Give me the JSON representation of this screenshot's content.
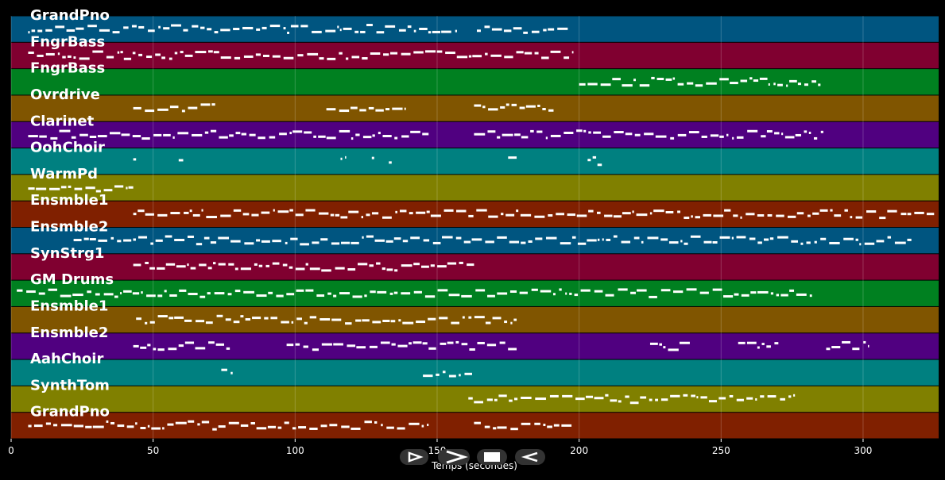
{
  "xlabel": "Temps (secondes)",
  "xlim": [
    0,
    326.6
  ],
  "xticks": [
    0,
    50,
    100,
    150,
    200,
    250,
    300
  ],
  "tracks": [
    {
      "name": "GrandPno",
      "color": "#005580",
      "spans": [
        [
          6,
          157
        ],
        [
          164,
          196
        ]
      ]
    },
    {
      "name": "FngrBass",
      "color": "#800030",
      "spans": [
        [
          6,
          198
        ]
      ]
    },
    {
      "name": "FngrBass",
      "color": "#008020",
      "spans": [
        [
          200,
          285
        ]
      ]
    },
    {
      "name": "Ovrdrive",
      "color": "#805500",
      "spans": [
        [
          43,
          72
        ],
        [
          111,
          139
        ],
        [
          163,
          191
        ]
      ]
    },
    {
      "name": "Clarinet",
      "color": "#500080",
      "spans": [
        [
          6,
          147
        ],
        [
          163,
          286
        ]
      ]
    },
    {
      "name": "OohChoir",
      "color": "#008080",
      "spans": [
        [
          43,
          44
        ],
        [
          59,
          61
        ],
        [
          116,
          118
        ],
        [
          127,
          128
        ],
        [
          133,
          134
        ],
        [
          175,
          178
        ],
        [
          203,
          208
        ]
      ]
    },
    {
      "name": "WarmPd",
      "color": "#808000",
      "spans": [
        [
          6,
          43
        ]
      ]
    },
    {
      "name": "Ensmble1",
      "color": "#802000",
      "spans": [
        [
          43,
          325
        ]
      ]
    },
    {
      "name": "Ensmble2",
      "color": "#005580",
      "spans": [
        [
          22,
          317
        ]
      ]
    },
    {
      "name": "SynStrg1",
      "color": "#800030",
      "spans": [
        [
          43,
          163
        ]
      ]
    },
    {
      "name": "GM Drums",
      "color": "#008020",
      "spans": [
        [
          2,
          282
        ]
      ]
    },
    {
      "name": "Ensmble1",
      "color": "#805500",
      "spans": [
        [
          44,
          178
        ]
      ]
    },
    {
      "name": "Ensmble2",
      "color": "#500080",
      "spans": [
        [
          43,
          77
        ],
        [
          97,
          178
        ],
        [
          225,
          240
        ],
        [
          256,
          271
        ],
        [
          287,
          302
        ]
      ]
    },
    {
      "name": "AahChoir",
      "color": "#008080",
      "spans": [
        [
          74,
          78
        ],
        [
          145,
          163
        ]
      ]
    },
    {
      "name": "SynthTom",
      "color": "#808000",
      "spans": [
        [
          161,
          276
        ]
      ]
    },
    {
      "name": "GrandPno",
      "color": "#802000",
      "spans": [
        [
          6,
          147
        ],
        [
          163,
          198
        ]
      ]
    }
  ]
}
